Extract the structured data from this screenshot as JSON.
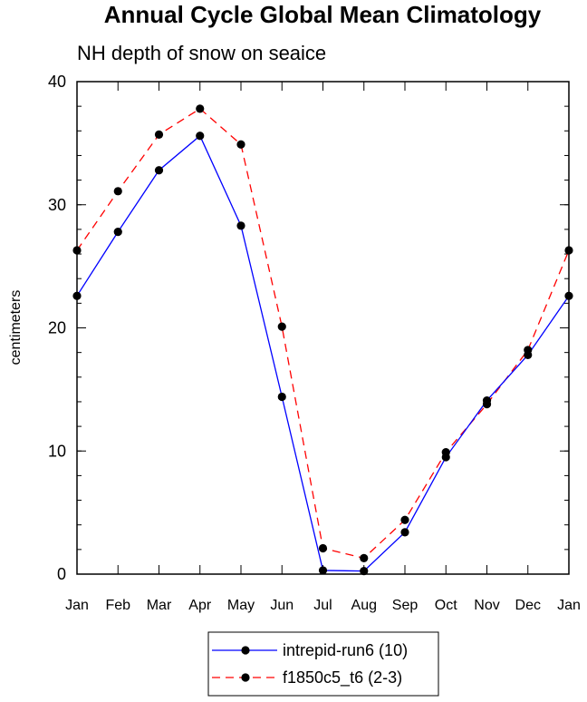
{
  "chart_data": {
    "type": "line",
    "title": "Annual Cycle Global Mean Climatology",
    "subtitle": "NH depth of snow on seaice",
    "ylabel": "centimeters",
    "categories": [
      "Jan",
      "Feb",
      "Mar",
      "Apr",
      "May",
      "Jun",
      "Jul",
      "Aug",
      "Sep",
      "Oct",
      "Nov",
      "Dec",
      "Jan"
    ],
    "ylim": [
      0,
      40
    ],
    "yticks": [
      0,
      10,
      20,
      30,
      40
    ],
    "series": [
      {
        "name": "intrepid-run6 (10)",
        "color": "#0000ff",
        "dash": "solid",
        "values": [
          22.6,
          27.8,
          32.8,
          35.6,
          28.3,
          14.4,
          0.3,
          0.25,
          3.4,
          9.5,
          14.1,
          17.8,
          22.6
        ]
      },
      {
        "name": "f1850c5_t6 (2-3)",
        "color": "#ff0000",
        "dash": "dashed",
        "values": [
          26.3,
          31.1,
          35.7,
          37.8,
          34.9,
          20.1,
          2.1,
          1.3,
          4.4,
          9.9,
          13.8,
          18.2,
          26.3
        ]
      }
    ]
  }
}
